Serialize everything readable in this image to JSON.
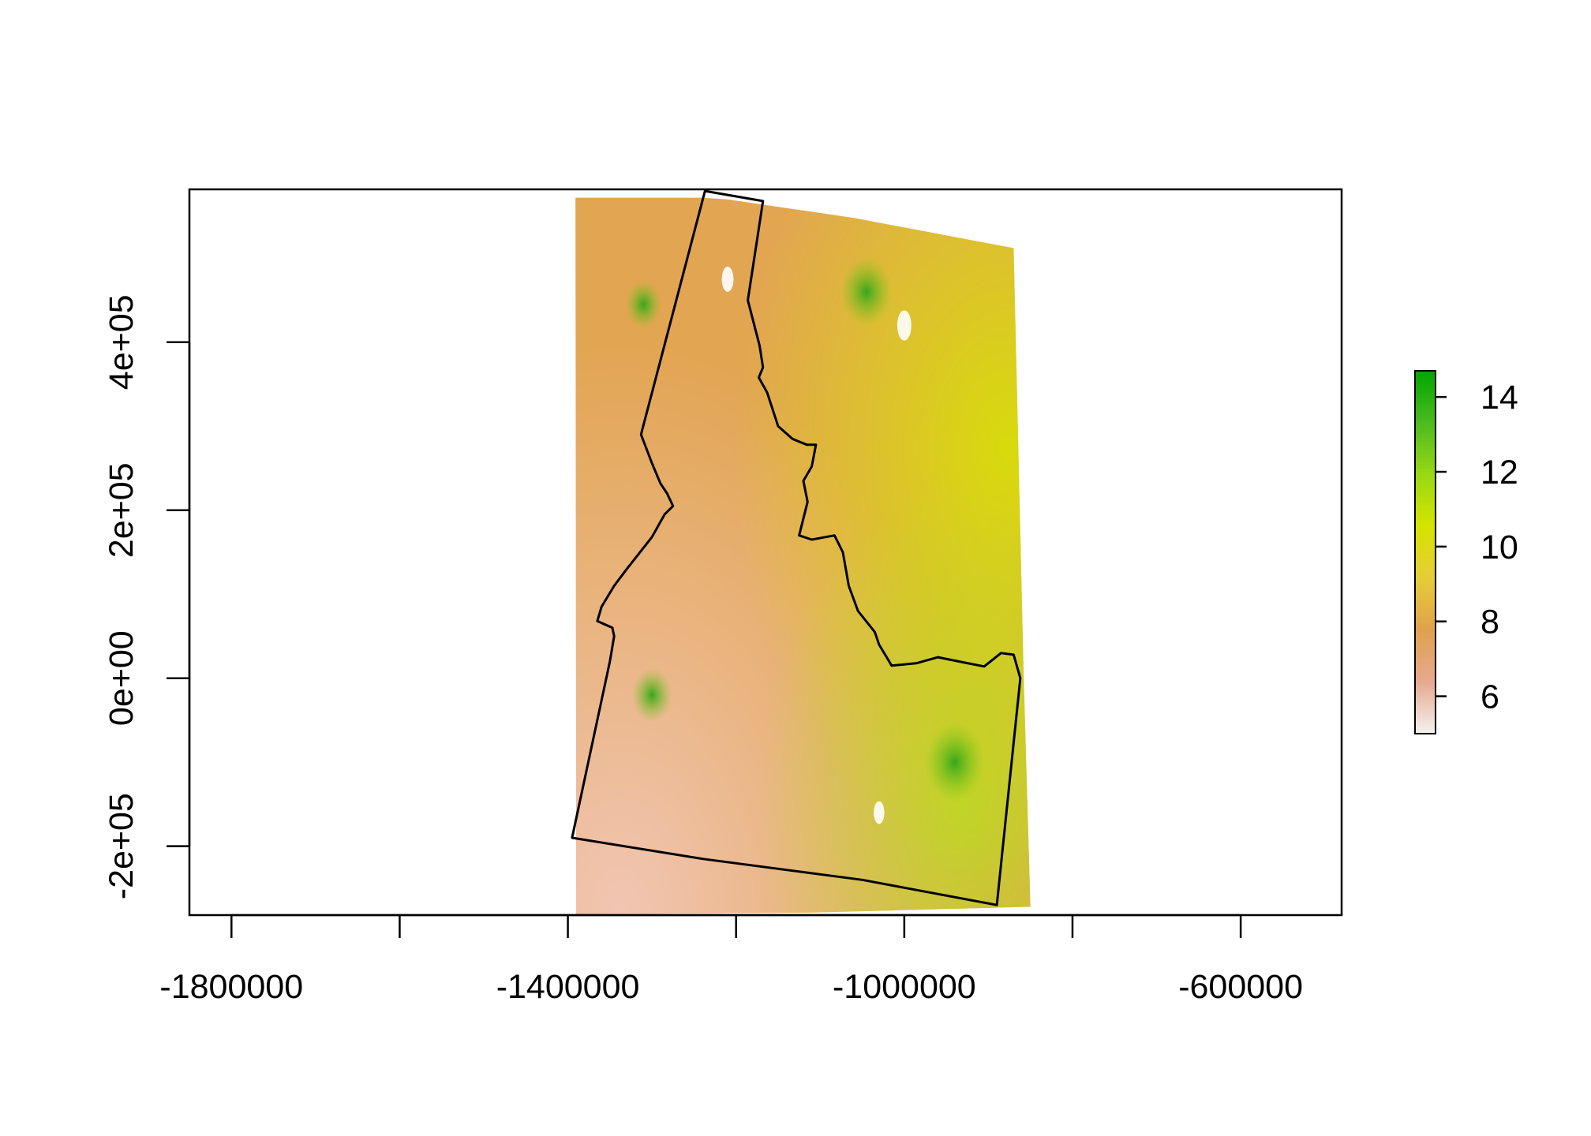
{
  "chart_data": {
    "type": "heatmap",
    "title": "",
    "xlabel": "",
    "ylabel": "",
    "xlim": [
      -1850000,
      -480000
    ],
    "ylim": [
      -282000,
      582000
    ],
    "x_ticks": [
      {
        "value": -1800000,
        "label": "-1800000"
      },
      {
        "value": -1600000,
        "label": ""
      },
      {
        "value": -1400000,
        "label": "-1400000"
      },
      {
        "value": -1200000,
        "label": ""
      },
      {
        "value": -1000000,
        "label": "-1000000"
      },
      {
        "value": -800000,
        "label": ""
      },
      {
        "value": -600000,
        "label": "-600000"
      }
    ],
    "y_ticks": [
      {
        "value": -200000,
        "label": "-2e+05"
      },
      {
        "value": 0,
        "label": "0e+00"
      },
      {
        "value": 200000,
        "label": "2e+05"
      },
      {
        "value": 400000,
        "label": "4e+05"
      }
    ],
    "legend": {
      "placement": "right",
      "range": [
        5,
        14.7
      ],
      "ticks": [
        {
          "value": 6,
          "label": "6"
        },
        {
          "value": 8,
          "label": "8"
        },
        {
          "value": 10,
          "label": "10"
        },
        {
          "value": 12,
          "label": "12"
        },
        {
          "value": 14,
          "label": "14"
        }
      ],
      "colors": [
        "#f2f2f2",
        "#e6a98f",
        "#e0a14d",
        "#e6cd38",
        "#d6e400",
        "#99d815",
        "#4bbb1e",
        "#00a600"
      ]
    },
    "raster_extent": {
      "corners": [
        [
          -1391000,
          572000
        ],
        [
          -1240000,
          572000
        ],
        [
          -1210000,
          570000
        ],
        [
          -1060000,
          548000
        ],
        [
          -870000,
          512000
        ],
        [
          -858000,
          0
        ],
        [
          -850000,
          -272000
        ],
        [
          -1109000,
          -279000
        ],
        [
          -1390000,
          -281000
        ]
      ],
      "dominant_value": 8
    },
    "boundary": {
      "name": "Idaho",
      "stroke": "#000000",
      "points": [
        [
          -1237000,
          580000
        ],
        [
          -1168000,
          568000
        ],
        [
          -1186000,
          450000
        ],
        [
          -1172000,
          396000
        ],
        [
          -1168000,
          370000
        ],
        [
          -1173000,
          358000
        ],
        [
          -1163000,
          340000
        ],
        [
          -1150000,
          300000
        ],
        [
          -1133000,
          285000
        ],
        [
          -1116000,
          278000
        ],
        [
          -1105000,
          278000
        ],
        [
          -1110000,
          252000
        ],
        [
          -1120000,
          235000
        ],
        [
          -1115000,
          210000
        ],
        [
          -1125000,
          170000
        ],
        [
          -1110000,
          165000
        ],
        [
          -1083000,
          170000
        ],
        [
          -1073000,
          150000
        ],
        [
          -1066000,
          110000
        ],
        [
          -1055000,
          80000
        ],
        [
          -1035000,
          55000
        ],
        [
          -1030000,
          40000
        ],
        [
          -1015000,
          15000
        ],
        [
          -985000,
          18000
        ],
        [
          -960000,
          25000
        ],
        [
          -925000,
          18000
        ],
        [
          -905000,
          14000
        ],
        [
          -885000,
          30000
        ],
        [
          -870000,
          28000
        ],
        [
          -862000,
          0
        ],
        [
          -890000,
          -270000
        ],
        [
          -1050000,
          -240000
        ],
        [
          -1240000,
          -215000
        ],
        [
          -1395000,
          -190000
        ],
        [
          -1350000,
          20000
        ],
        [
          -1345000,
          50000
        ],
        [
          -1347000,
          60000
        ],
        [
          -1365000,
          68000
        ],
        [
          -1360000,
          85000
        ],
        [
          -1345000,
          110000
        ],
        [
          -1330000,
          130000
        ],
        [
          -1300000,
          168000
        ],
        [
          -1285000,
          195000
        ],
        [
          -1275000,
          205000
        ],
        [
          -1282000,
          220000
        ],
        [
          -1290000,
          232000
        ],
        [
          -1300000,
          256000
        ],
        [
          -1313000,
          290000
        ],
        [
          -1312000,
          294000
        ]
      ]
    },
    "green_patches": [
      {
        "x": -1310000,
        "y": 445000,
        "r": 18000,
        "value": 13
      },
      {
        "x": -1300000,
        "y": -20000,
        "r": 20000,
        "value": 14
      },
      {
        "x": -1045000,
        "y": 460000,
        "r": 26000,
        "value": 12
      },
      {
        "x": -940000,
        "y": -100000,
        "r": 30000,
        "value": 12
      }
    ],
    "light_patches": [
      {
        "x": -1000000,
        "y": 420000,
        "r": 12000,
        "value": 5
      },
      {
        "x": -1210000,
        "y": 475000,
        "r": 10000,
        "value": 5
      },
      {
        "x": -1030000,
        "y": -160000,
        "r": 9000,
        "value": 5
      }
    ]
  }
}
